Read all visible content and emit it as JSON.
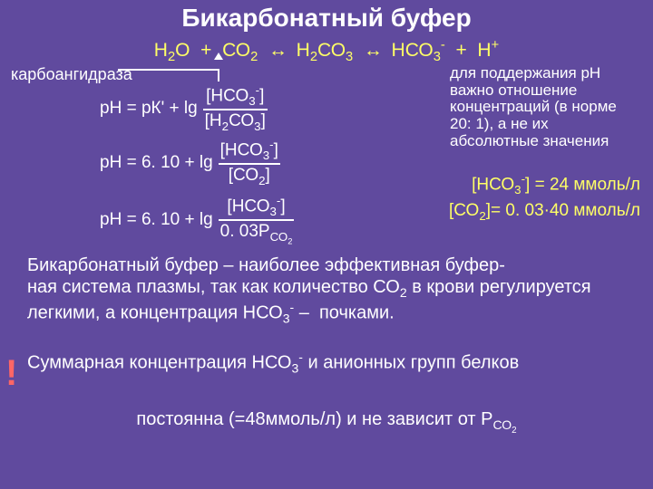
{
  "title": "Бикарбонатный буфер",
  "main_equation_html": "Н<sub>2</sub>О &nbsp;+&nbsp; СО<sub>2</sub> &nbsp;<span class='arrow2'>↔</span>&nbsp; Н<sub>2</sub>СО<sub>3</sub> &nbsp;<span class='arrow2'>↔</span>&nbsp; НСО<sub>3</sub><sup>-</sup> &nbsp;+&nbsp; Н<sup>+</sup>",
  "carbo_label": "карбоангидраза",
  "formula1": {
    "lhs": "рН = рК' + lg",
    "num_html": "[НСО<sub>3</sub><sup>-</sup>]",
    "den_html": "[Н<sub>2</sub>СО<sub>3</sub>]"
  },
  "formula2": {
    "lhs": "рН = 6. 10 + lg",
    "num_html": "[НСО<sub>3</sub><sup>-</sup>]",
    "den_html": "[СО<sub>2</sub>]"
  },
  "formula3": {
    "lhs": "рН = 6. 10 + lg",
    "num_html": "[НСО<sub>3</sub><sup>-</sup>]",
    "den_html": "0. 03Р<sub>СО<sub>2</sub></sub>"
  },
  "side_note": "для поддержания рН важно отношение концентраций (в норме 20: 1), а не их абсолютные значения",
  "side_val1_html": "[НСО<sub>3</sub><sup>-</sup>] = 24 ммоль/л",
  "side_val2_html": "[СО<sub>2</sub>]= 0. 03·40 ммоль/л",
  "para1_html": "Бикарбонатный буфер – наиболее эффективная буфер-<br>ная система плазмы, так как количество СО<sub>2</sub> в крови регулируется легкими, а концентрация НСО<sub>3</sub><sup>-</sup> – &nbsp;почками.",
  "excl": "!",
  "para2_html": "Суммарная концентрация НСО<sub>3</sub><sup>-</sup> и анионных групп белков",
  "para3_html": "постоянна (=48ммоль/л) и не зависит от Р<sub>СО<sub>2</sub></sub>",
  "colors": {
    "background": "#604a9e",
    "text": "#ffffff",
    "highlight": "#ffff66",
    "alert": "#ff6666"
  }
}
